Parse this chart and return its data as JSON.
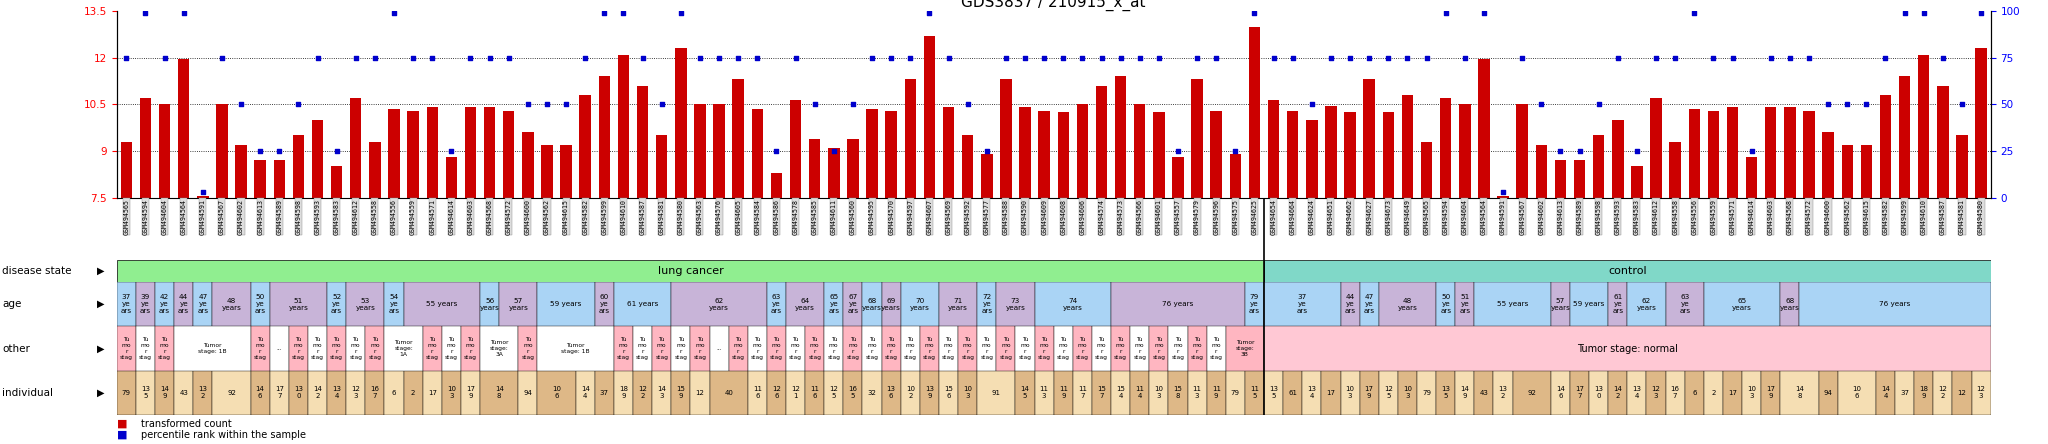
{
  "title": "GDS3837 / 210915_x_at",
  "bar_color": "#cc0000",
  "dot_color": "#0000cc",
  "ylim_left": [
    7.5,
    13.5
  ],
  "ylim_right": [
    0,
    100
  ],
  "yticks_left": [
    7.5,
    9.0,
    10.5,
    12.0,
    13.5
  ],
  "yticks_left_labels": [
    "7.5",
    "9",
    "10.5",
    "12",
    "13.5"
  ],
  "yticks_right": [
    0,
    25,
    50,
    75,
    100
  ],
  "yticks_right_labels": [
    "0",
    "25",
    "50",
    "75",
    "100"
  ],
  "n_lung": 60,
  "n_control": 38,
  "lung_samples": [
    "GSM494565",
    "GSM494594",
    "GSM494604",
    "GSM494564",
    "GSM494591",
    "GSM494567",
    "GSM494602",
    "GSM494613",
    "GSM494589",
    "GSM494598",
    "GSM494593",
    "GSM494583",
    "GSM494612",
    "GSM494558",
    "GSM494556",
    "GSM494559",
    "GSM494571",
    "GSM494614",
    "GSM494603",
    "GSM494568",
    "GSM494572",
    "GSM494600",
    "GSM494562",
    "GSM494615",
    "GSM494582",
    "GSM494599",
    "GSM494610",
    "GSM494587",
    "GSM494581",
    "GSM494580",
    "GSM494563",
    "GSM494576",
    "GSM494605",
    "GSM494584",
    "GSM494586",
    "GSM494578",
    "GSM494585",
    "GSM494611",
    "GSM494560",
    "GSM494595",
    "GSM494570",
    "GSM494597",
    "GSM494607",
    "GSM494569",
    "GSM494592",
    "GSM494577",
    "GSM494588",
    "GSM494590",
    "GSM494609",
    "GSM494608",
    "GSM494606",
    "GSM494574",
    "GSM494573",
    "GSM494566",
    "GSM494601",
    "GSM494557",
    "GSM494579",
    "GSM494596",
    "GSM494575",
    "GSM494625"
  ],
  "control_samples": [
    "GSM494654",
    "GSM494664",
    "GSM494624",
    "GSM494651",
    "GSM494662",
    "GSM494627",
    "GSM494673",
    "GSM494649",
    "GSM494565",
    "GSM494594",
    "GSM494604",
    "GSM494564",
    "GSM494591",
    "GSM494567",
    "GSM494602",
    "GSM494613",
    "GSM494589",
    "GSM494598",
    "GSM494593",
    "GSM494583",
    "GSM494612",
    "GSM494558",
    "GSM494556",
    "GSM494559",
    "GSM494571",
    "GSM494614",
    "GSM494603",
    "GSM494568",
    "GSM494572",
    "GSM494600",
    "GSM494562",
    "GSM494615",
    "GSM494582",
    "GSM494599",
    "GSM494610",
    "GSM494587",
    "GSM494581",
    "GSM494580"
  ],
  "lung_bars": [
    9.3,
    10.7,
    10.5,
    11.95,
    7.55,
    10.5,
    9.2,
    8.7,
    8.7,
    9.5,
    10.0,
    8.5,
    10.7,
    9.3,
    10.35,
    10.3,
    10.4,
    8.8,
    10.4,
    10.4,
    10.3,
    9.6,
    9.2,
    9.2,
    10.8,
    11.4,
    12.1,
    11.1,
    9.5,
    12.3,
    10.5,
    10.5,
    11.3,
    10.35,
    8.3,
    10.65,
    9.4,
    9.1,
    9.4,
    10.35,
    10.3,
    11.3,
    12.7,
    10.4,
    9.5,
    8.9,
    11.3,
    10.4,
    10.3,
    10.25,
    10.5,
    11.1,
    11.4,
    10.5,
    10.25,
    8.8,
    11.3,
    10.3,
    8.9,
    13.0
  ],
  "control_bars": [
    10.65,
    10.3,
    10.0,
    10.45,
    10.25,
    11.3,
    10.25,
    10.8,
    9.3,
    10.7,
    10.5,
    11.95,
    7.55,
    10.5,
    9.2,
    8.7,
    8.7,
    9.5,
    10.0,
    8.5,
    10.7,
    9.3,
    10.35,
    10.3,
    10.4,
    8.8,
    10.4,
    10.4,
    10.3,
    9.6,
    9.2,
    9.2,
    10.8,
    11.4,
    12.1,
    11.1,
    9.5,
    12.3
  ],
  "lung_dots": [
    75,
    99,
    75,
    99,
    3,
    75,
    50,
    25,
    25,
    50,
    75,
    25,
    75,
    75,
    99,
    75,
    75,
    25,
    75,
    75,
    75,
    50,
    50,
    50,
    75,
    99,
    99,
    75,
    50,
    99,
    75,
    75,
    75,
    75,
    25,
    75,
    50,
    25,
    50,
    75,
    75,
    75,
    99,
    75,
    50,
    25,
    75,
    75,
    75,
    75,
    75,
    75,
    75,
    75,
    75,
    25,
    75,
    75,
    25,
    99
  ],
  "control_dots": [
    75,
    75,
    50,
    75,
    75,
    75,
    75,
    75,
    75,
    99,
    75,
    99,
    3,
    75,
    50,
    25,
    25,
    50,
    75,
    25,
    75,
    75,
    99,
    75,
    75,
    25,
    75,
    75,
    75,
    50,
    50,
    50,
    75,
    99,
    99,
    75,
    50,
    99
  ],
  "lung_age": [
    [
      0,
      1,
      "37\nye\nars"
    ],
    [
      1,
      1,
      "39\nye\nars"
    ],
    [
      2,
      1,
      "42\nye\nars"
    ],
    [
      3,
      1,
      "44\nye\nars"
    ],
    [
      4,
      1,
      "47\nye\nars"
    ],
    [
      5,
      2,
      "48\nyears"
    ],
    [
      7,
      1,
      "50\nye\nars"
    ],
    [
      8,
      3,
      "51\nyears"
    ],
    [
      11,
      1,
      "52\nye\nars"
    ],
    [
      12,
      2,
      "53\nyears"
    ],
    [
      14,
      1,
      "54\nye\nars"
    ],
    [
      15,
      4,
      "55 years"
    ],
    [
      19,
      1,
      "56\nyears"
    ],
    [
      20,
      2,
      "57\nyears"
    ],
    [
      22,
      3,
      "59 years"
    ],
    [
      25,
      1,
      "60\nye\nars"
    ],
    [
      26,
      3,
      "61 years"
    ],
    [
      29,
      5,
      "62\nyears"
    ],
    [
      34,
      1,
      "63\nye\nars"
    ],
    [
      35,
      2,
      "64\nyears"
    ],
    [
      37,
      1,
      "65\nye\nars"
    ],
    [
      38,
      1,
      "67\nye\nars"
    ],
    [
      39,
      1,
      "68\nyears"
    ],
    [
      40,
      1,
      "69\nyears"
    ],
    [
      41,
      2,
      "70\nyears"
    ],
    [
      43,
      2,
      "71\nyears"
    ],
    [
      45,
      1,
      "72\nye\nars"
    ],
    [
      46,
      2,
      "73\nyears"
    ],
    [
      48,
      4,
      "74\nyears"
    ],
    [
      52,
      7,
      "76 years"
    ],
    [
      59,
      1,
      "79\nye\nars"
    ]
  ],
  "control_age": [
    [
      0,
      4,
      "37\nye\nars"
    ],
    [
      4,
      1,
      "44\nye\nars"
    ],
    [
      5,
      1,
      "47\nye\nars"
    ],
    [
      6,
      3,
      "48\nyears"
    ],
    [
      9,
      1,
      "50\nye\nars"
    ],
    [
      10,
      1,
      "51\nye\nars"
    ],
    [
      11,
      4,
      "55 years"
    ],
    [
      15,
      1,
      "57\nyears"
    ],
    [
      16,
      2,
      "59 years"
    ],
    [
      18,
      1,
      "61\nye\nars"
    ],
    [
      19,
      2,
      "62\nyears"
    ],
    [
      21,
      2,
      "63\nye\nars"
    ],
    [
      23,
      4,
      "65\nyears"
    ],
    [
      27,
      1,
      "68\nyears"
    ],
    [
      28,
      10,
      "76 years"
    ]
  ],
  "lung_other": [
    [
      0,
      1,
      "Tu\nmo\nr\nstag"
    ],
    [
      1,
      1,
      "Tu\nmo\nr\nstag"
    ],
    [
      2,
      1,
      "Tu\nmo\nr\nstag"
    ],
    [
      3,
      4,
      "Tumor\nstage: 1B"
    ],
    [
      7,
      1,
      "Tu\nmo\nr\nstag"
    ],
    [
      8,
      1,
      "..."
    ],
    [
      9,
      1,
      "Tu\nmo\nr\nstag"
    ],
    [
      10,
      1,
      "Tu\nmo\nr\nstag"
    ],
    [
      11,
      1,
      "Tu\nmo\nr\nstag"
    ],
    [
      12,
      1,
      "Tu\nmo\nr\nstag"
    ],
    [
      13,
      1,
      "Tu\nmo\nr\nstag"
    ],
    [
      14,
      2,
      "Tumor\nstage:\n1A"
    ],
    [
      16,
      1,
      "Tu\nmo\nr\nstag"
    ],
    [
      17,
      1,
      "Tu\nmo\nr\nstag"
    ],
    [
      18,
      1,
      "Tu\nmo\nr\nstag"
    ],
    [
      19,
      2,
      "Tumor\nstage:\n3A"
    ],
    [
      21,
      1,
      "Tu\nmo\nr\nstag"
    ],
    [
      22,
      4,
      "Tumor\nstage: 1B"
    ],
    [
      26,
      1,
      "Tu\nmo\nr\nstag"
    ],
    [
      27,
      1,
      "Tu\nmo\nr\nstag"
    ],
    [
      28,
      1,
      "Tu\nmo\nr\nstag"
    ],
    [
      29,
      1,
      "Tu\nmo\nr\nstag"
    ],
    [
      30,
      1,
      "Tu\nmo\nr\nstag"
    ],
    [
      31,
      1,
      "..."
    ],
    [
      32,
      1,
      "Tu\nmo\nr\nstag"
    ],
    [
      33,
      1,
      "Tu\nmo\nr\nstag"
    ],
    [
      34,
      1,
      "Tu\nmo\nr\nstag"
    ],
    [
      35,
      1,
      "Tu\nmo\nr\nstag"
    ],
    [
      36,
      1,
      "Tu\nmo\nr\nstag"
    ],
    [
      37,
      1,
      "Tu\nmo\nr\nstag"
    ],
    [
      38,
      1,
      "Tu\nmo\nr\nstag"
    ],
    [
      39,
      1,
      "Tu\nmo\nr\nstag"
    ],
    [
      40,
      1,
      "Tu\nmo\nr\nstag"
    ],
    [
      41,
      1,
      "Tu\nmo\nr\nstag"
    ],
    [
      42,
      1,
      "Tu\nmo\nr\nstag"
    ],
    [
      43,
      1,
      "Tu\nmo\nr\nstag"
    ],
    [
      44,
      1,
      "Tu\nmo\nr\nstag"
    ],
    [
      45,
      1,
      "Tu\nmo\nr\nstag"
    ],
    [
      46,
      1,
      "Tu\nmo\nr\nstag"
    ],
    [
      47,
      1,
      "Tu\nmo\nr\nstag"
    ],
    [
      48,
      1,
      "Tu\nmo\nr\nstag"
    ],
    [
      49,
      1,
      "Tu\nmo\nr\nstag"
    ],
    [
      50,
      1,
      "Tu\nmo\nr\nstag"
    ],
    [
      51,
      1,
      "Tu\nmo\nr\nstag"
    ],
    [
      52,
      1,
      "Tu\nmo\nr\nstag"
    ],
    [
      53,
      1,
      "Tu\nmo\nr\nstag"
    ],
    [
      54,
      1,
      "Tu\nmo\nr\nstag"
    ],
    [
      55,
      1,
      "Tu\nmo\nr\nstag"
    ],
    [
      56,
      1,
      "Tu\nmo\nr\nstag"
    ],
    [
      57,
      1,
      "Tu\nmo\nr\nstag"
    ],
    [
      58,
      2,
      "Tumor\nstage:\n3B"
    ]
  ],
  "control_other": [
    [
      0,
      38,
      "Tumor stage: normal"
    ]
  ],
  "lung_ind": [
    [
      0,
      1,
      "79"
    ],
    [
      1,
      1,
      "13\n5"
    ],
    [
      2,
      1,
      "14\n9"
    ],
    [
      3,
      1,
      "43"
    ],
    [
      4,
      1,
      "13\n2"
    ],
    [
      5,
      2,
      "92"
    ],
    [
      7,
      1,
      "14\n6"
    ],
    [
      8,
      1,
      "17\n7"
    ],
    [
      9,
      1,
      "13\n0"
    ],
    [
      10,
      1,
      "14\n2"
    ],
    [
      11,
      1,
      "13\n4"
    ],
    [
      12,
      1,
      "12\n3"
    ],
    [
      13,
      1,
      "16\n7"
    ],
    [
      14,
      1,
      "6"
    ],
    [
      15,
      1,
      "2"
    ],
    [
      16,
      1,
      "17"
    ],
    [
      17,
      1,
      "10\n3"
    ],
    [
      18,
      1,
      "17\n9"
    ],
    [
      19,
      2,
      "14\n8"
    ],
    [
      21,
      1,
      "94"
    ],
    [
      22,
      2,
      "10\n6"
    ],
    [
      24,
      1,
      "14\n4"
    ],
    [
      25,
      1,
      "37"
    ],
    [
      26,
      1,
      "18\n9"
    ],
    [
      27,
      1,
      "12\n2"
    ],
    [
      28,
      1,
      "14\n3"
    ],
    [
      29,
      1,
      "15\n9"
    ],
    [
      30,
      1,
      "12"
    ],
    [
      31,
      2,
      "40"
    ],
    [
      33,
      1,
      "11\n6"
    ],
    [
      34,
      1,
      "12\n6"
    ],
    [
      35,
      1,
      "12\n1"
    ],
    [
      36,
      1,
      "11\n6"
    ],
    [
      37,
      1,
      "12\n5"
    ],
    [
      38,
      1,
      "16\n5"
    ],
    [
      39,
      1,
      "32"
    ],
    [
      40,
      1,
      "13\n6"
    ],
    [
      41,
      1,
      "10\n2"
    ],
    [
      42,
      1,
      "13\n9"
    ],
    [
      43,
      1,
      "15\n6"
    ],
    [
      44,
      1,
      "10\n3"
    ],
    [
      45,
      2,
      "91"
    ],
    [
      47,
      1,
      "14\n5"
    ],
    [
      48,
      1,
      "11\n3"
    ],
    [
      49,
      1,
      "11\n9"
    ],
    [
      50,
      1,
      "11\n7"
    ],
    [
      51,
      1,
      "15\n7"
    ],
    [
      52,
      1,
      "15\n4"
    ],
    [
      53,
      1,
      "11\n4"
    ],
    [
      54,
      1,
      "10\n3"
    ],
    [
      55,
      1,
      "15\n8"
    ],
    [
      56,
      1,
      "11\n3"
    ],
    [
      57,
      1,
      "11\n9"
    ],
    [
      58,
      1,
      "79"
    ],
    [
      59,
      1,
      "11\n5"
    ]
  ],
  "control_ind": [
    [
      0,
      1,
      "13\n5"
    ],
    [
      1,
      1,
      "61"
    ],
    [
      2,
      1,
      "13\n4"
    ],
    [
      3,
      1,
      "17"
    ],
    [
      4,
      1,
      "10\n3"
    ],
    [
      5,
      1,
      "17\n9"
    ],
    [
      6,
      1,
      "12\n5"
    ],
    [
      7,
      1,
      "10\n3"
    ],
    [
      8,
      1,
      "79"
    ],
    [
      9,
      1,
      "13\n5"
    ],
    [
      10,
      1,
      "14\n9"
    ],
    [
      11,
      1,
      "43"
    ],
    [
      12,
      1,
      "13\n2"
    ],
    [
      13,
      2,
      "92"
    ],
    [
      15,
      1,
      "14\n6"
    ],
    [
      16,
      1,
      "17\n7"
    ],
    [
      17,
      1,
      "13\n0"
    ],
    [
      18,
      1,
      "14\n2"
    ],
    [
      19,
      1,
      "13\n4"
    ],
    [
      20,
      1,
      "12\n3"
    ],
    [
      21,
      1,
      "16\n7"
    ],
    [
      22,
      1,
      "6"
    ],
    [
      23,
      1,
      "2"
    ],
    [
      24,
      1,
      "17"
    ],
    [
      25,
      1,
      "10\n3"
    ],
    [
      26,
      1,
      "17\n9"
    ],
    [
      27,
      2,
      "14\n8"
    ],
    [
      29,
      1,
      "94"
    ],
    [
      30,
      2,
      "10\n6"
    ],
    [
      32,
      1,
      "14\n4"
    ],
    [
      33,
      1,
      "37"
    ],
    [
      34,
      1,
      "18\n9"
    ],
    [
      35,
      1,
      "12\n2"
    ],
    [
      36,
      1,
      "12"
    ],
    [
      37,
      1,
      "12\n3"
    ]
  ],
  "age_colors": [
    "#aad4f5",
    "#c8b4d8"
  ],
  "other_pink": "#ffb6c1",
  "other_white": "#ffffff",
  "ind_dark": "#deb887",
  "ind_light": "#f5deb3",
  "disease_green": "#90ee90",
  "disease_teal": "#80d8c8"
}
